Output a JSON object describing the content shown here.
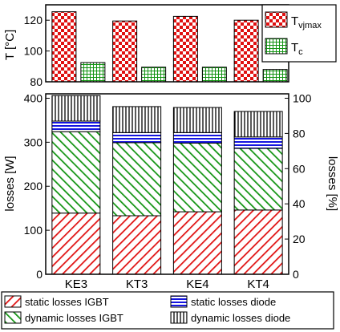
{
  "chart_data": [
    {
      "type": "bar",
      "ylabel": "T [°C]",
      "ylim": [
        80,
        130
      ],
      "yticks": [
        "80",
        "100",
        "120"
      ],
      "categories": [
        "KE3",
        "KT3",
        "KE4",
        "KT4"
      ],
      "series": [
        {
          "name": "T",
          "name_sub": "vjmax",
          "values": [
            125.5,
            119.5,
            122.5,
            120.0
          ],
          "color": "#e01010",
          "pattern": "checker"
        },
        {
          "name": "T",
          "name_sub": "c",
          "values": [
            92.5,
            89.5,
            89.5,
            88.0
          ],
          "color": "#139413",
          "pattern": "grid"
        }
      ],
      "legend": "top-right",
      "grid": false
    },
    {
      "type": "bar",
      "stacked": true,
      "ylabel": "losses [W]",
      "ylabel_right": "losses [%]",
      "ylim": [
        0,
        410
      ],
      "yticks": [
        "0",
        "100",
        "200",
        "300",
        "400"
      ],
      "ylim_right": [
        0,
        102.5
      ],
      "yticks_right": [
        "0",
        "20",
        "40",
        "60",
        "80",
        "100"
      ],
      "categories": [
        "KE3",
        "KT3",
        "KE4",
        "KT4"
      ],
      "series": [
        {
          "name": "static losses IGBT",
          "values": [
            139,
            133,
            142,
            146
          ],
          "color": "#e01010",
          "pattern": "diag-down"
        },
        {
          "name": "dynamic losses IGBT",
          "values": [
            185,
            166,
            156,
            140
          ],
          "color": "#139413",
          "pattern": "diag-up"
        },
        {
          "name": "static losses diode",
          "values": [
            24,
            23,
            24,
            26
          ],
          "color": "#1515e0",
          "pattern": "horizontal"
        },
        {
          "name": "dynamic losses diode",
          "values": [
            58,
            59,
            57,
            58
          ],
          "color": "#000000",
          "pattern": "vertical"
        }
      ],
      "legend": "bottom",
      "grid": false
    }
  ]
}
